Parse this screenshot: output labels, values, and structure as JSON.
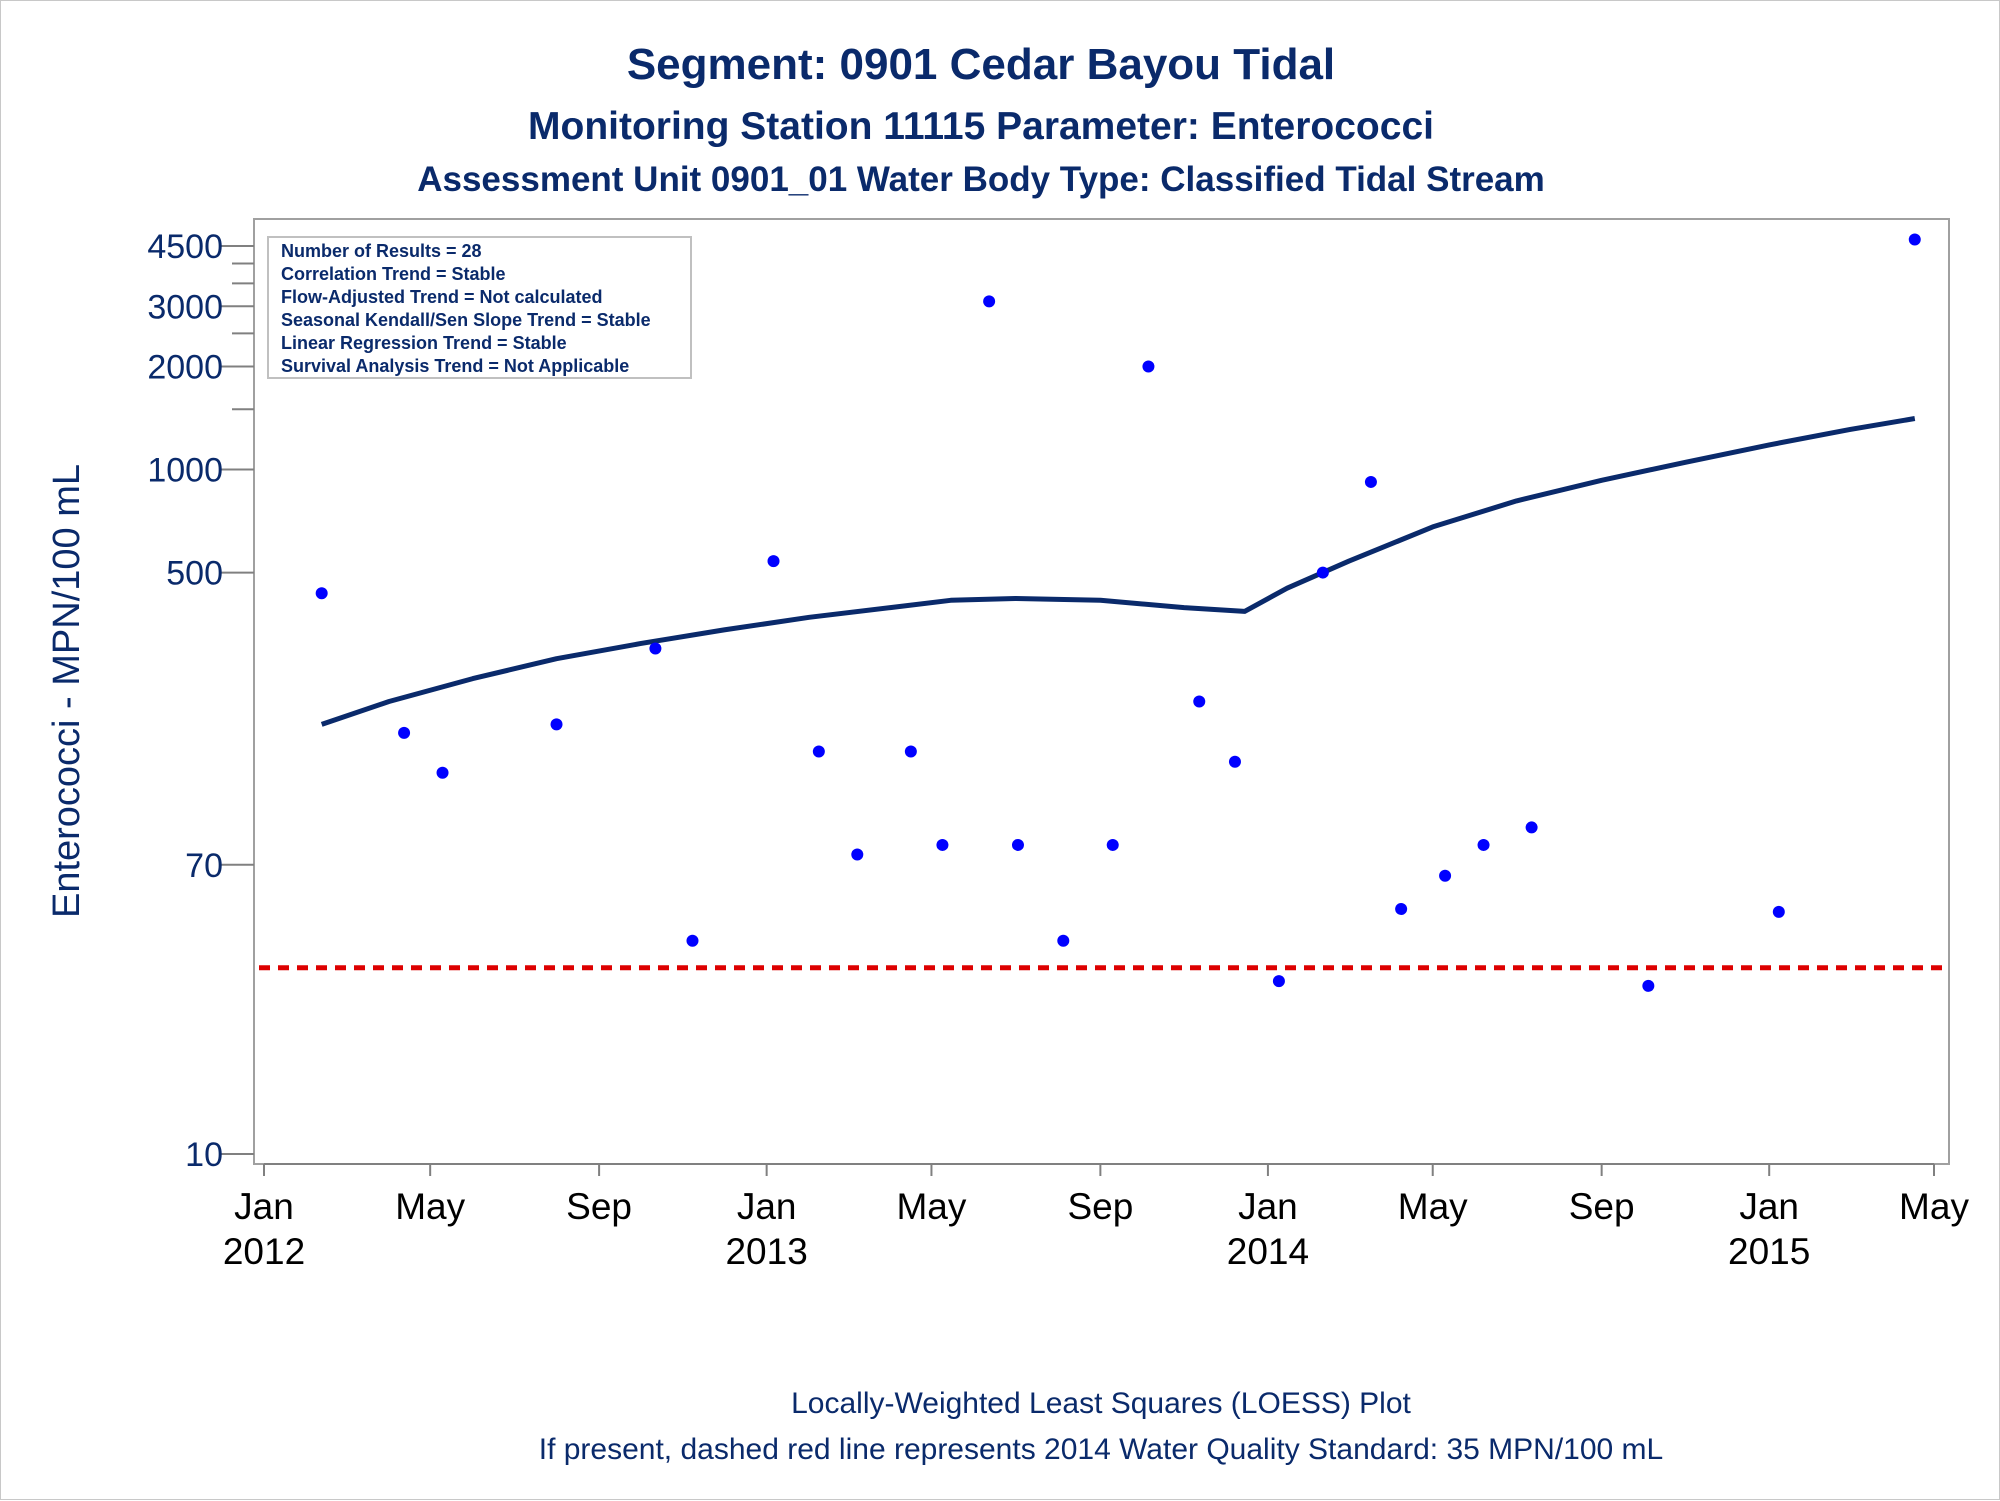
{
  "chart_data": {
    "type": "scatter",
    "title": "Segment: 0901  Cedar Bayou Tidal",
    "subtitle": "Monitoring Station 11115 Parameter: Enterococci",
    "subtitle2": "Assessment Unit 0901_01   Water Body Type: Classified Tidal Stream",
    "ylabel": "Enterococci - MPN/100 mL",
    "y_scale": "log",
    "ylim": [
      10,
      4500
    ],
    "y_ticks": [
      10,
      70,
      500,
      1000,
      2000,
      3000,
      4500
    ],
    "y_minor_ticks": [
      1500,
      2500,
      3500,
      4000
    ],
    "xlim": [
      "2012-01-01",
      "2015-05-01"
    ],
    "x_ticks": [
      {
        "date": "2012-01-01",
        "month": "Jan",
        "year": "2012"
      },
      {
        "date": "2012-05-01",
        "month": "May",
        "year": ""
      },
      {
        "date": "2012-09-01",
        "month": "Sep",
        "year": ""
      },
      {
        "date": "2013-01-01",
        "month": "Jan",
        "year": "2013"
      },
      {
        "date": "2013-05-01",
        "month": "May",
        "year": ""
      },
      {
        "date": "2013-09-01",
        "month": "Sep",
        "year": ""
      },
      {
        "date": "2014-01-01",
        "month": "Jan",
        "year": "2014"
      },
      {
        "date": "2014-05-01",
        "month": "May",
        "year": ""
      },
      {
        "date": "2014-09-01",
        "month": "Sep",
        "year": ""
      },
      {
        "date": "2015-01-01",
        "month": "Jan",
        "year": "2015"
      },
      {
        "date": "2015-05-01",
        "month": "May",
        "year": ""
      }
    ],
    "points": [
      {
        "x": "2012-02-12",
        "y": 435
      },
      {
        "x": "2012-04-12",
        "y": 170
      },
      {
        "x": "2012-05-10",
        "y": 130
      },
      {
        "x": "2012-08-01",
        "y": 180
      },
      {
        "x": "2012-10-12",
        "y": 300
      },
      {
        "x": "2012-11-08",
        "y": 42
      },
      {
        "x": "2013-01-06",
        "y": 540
      },
      {
        "x": "2013-02-08",
        "y": 150
      },
      {
        "x": "2013-03-08",
        "y": 75
      },
      {
        "x": "2013-04-16",
        "y": 150
      },
      {
        "x": "2013-05-09",
        "y": 80
      },
      {
        "x": "2013-06-12",
        "y": 3100
      },
      {
        "x": "2013-07-03",
        "y": 80
      },
      {
        "x": "2013-08-05",
        "y": 42
      },
      {
        "x": "2013-09-10",
        "y": 80
      },
      {
        "x": "2013-10-06",
        "y": 2000
      },
      {
        "x": "2013-11-12",
        "y": 210
      },
      {
        "x": "2013-12-08",
        "y": 140
      },
      {
        "x": "2014-01-09",
        "y": 32
      },
      {
        "x": "2014-02-10",
        "y": 500
      },
      {
        "x": "2014-03-17",
        "y": 920
      },
      {
        "x": "2014-04-08",
        "y": 52
      },
      {
        "x": "2014-05-10",
        "y": 65
      },
      {
        "x": "2014-06-07",
        "y": 80
      },
      {
        "x": "2014-07-12",
        "y": 90
      },
      {
        "x": "2014-10-05",
        "y": 31
      },
      {
        "x": "2015-01-08",
        "y": 51
      },
      {
        "x": "2015-04-17",
        "y": 4700
      }
    ],
    "loess": [
      {
        "x": "2012-02-12",
        "y": 180
      },
      {
        "x": "2012-04-01",
        "y": 210
      },
      {
        "x": "2012-06-01",
        "y": 245
      },
      {
        "x": "2012-08-01",
        "y": 280
      },
      {
        "x": "2012-10-01",
        "y": 310
      },
      {
        "x": "2012-12-01",
        "y": 340
      },
      {
        "x": "2013-02-01",
        "y": 370
      },
      {
        "x": "2013-04-01",
        "y": 395
      },
      {
        "x": "2013-05-15",
        "y": 415
      },
      {
        "x": "2013-07-01",
        "y": 420
      },
      {
        "x": "2013-09-01",
        "y": 415
      },
      {
        "x": "2013-11-01",
        "y": 395
      },
      {
        "x": "2013-12-15",
        "y": 385
      },
      {
        "x": "2014-01-15",
        "y": 450
      },
      {
        "x": "2014-03-01",
        "y": 540
      },
      {
        "x": "2014-05-01",
        "y": 680
      },
      {
        "x": "2014-07-01",
        "y": 810
      },
      {
        "x": "2014-09-01",
        "y": 930
      },
      {
        "x": "2014-11-01",
        "y": 1050
      },
      {
        "x": "2015-01-01",
        "y": 1180
      },
      {
        "x": "2015-03-01",
        "y": 1310
      },
      {
        "x": "2015-04-17",
        "y": 1410
      }
    ],
    "standard": {
      "y": 35
    },
    "legend": [
      "Number of Results = 28",
      "Correlation Trend = Stable",
      "Flow-Adjusted Trend = Not calculated",
      "Seasonal Kendall/Sen Slope Trend = Stable",
      "Linear Regression Trend = Stable",
      "Survival Analysis Trend = Not Applicable"
    ],
    "legend_placement": "top-left",
    "grid": false,
    "footnote1": "Locally-Weighted Least Squares (LOESS) Plot",
    "footnote2": "If present, dashed red line represents 2014 Water Quality Standard: 35 MPN/100 mL",
    "colors": {
      "points": "#0000ff",
      "loess": "#0a2a6b",
      "standard": "#dd0000",
      "text": "#0a2a6b",
      "frame": "#a0a0a0"
    }
  }
}
